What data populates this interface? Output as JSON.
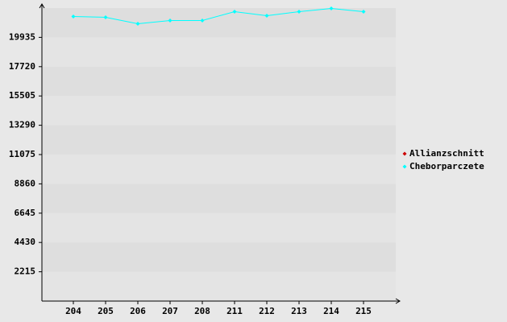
{
  "chart_data": {
    "type": "line",
    "categories": [
      "204",
      "205",
      "206",
      "207",
      "208",
      "211",
      "212",
      "213",
      "214",
      "215"
    ],
    "series": [
      {
        "name": "Allianzschnitt",
        "color": "#cc0000",
        "values": [
          null,
          null,
          null,
          null,
          null,
          null,
          null,
          null,
          null,
          null
        ]
      },
      {
        "name": "Cheborparczete",
        "color": "#00ffff",
        "values": [
          21513,
          21452,
          20966,
          21209,
          21209,
          21877,
          21573,
          21877,
          22120,
          21877
        ]
      }
    ],
    "ylim": [
      0,
      22150
    ],
    "yticks": [
      2215,
      4430,
      6645,
      8860,
      11075,
      13290,
      15505,
      17720,
      19935
    ],
    "grid": true,
    "legend": "right"
  }
}
